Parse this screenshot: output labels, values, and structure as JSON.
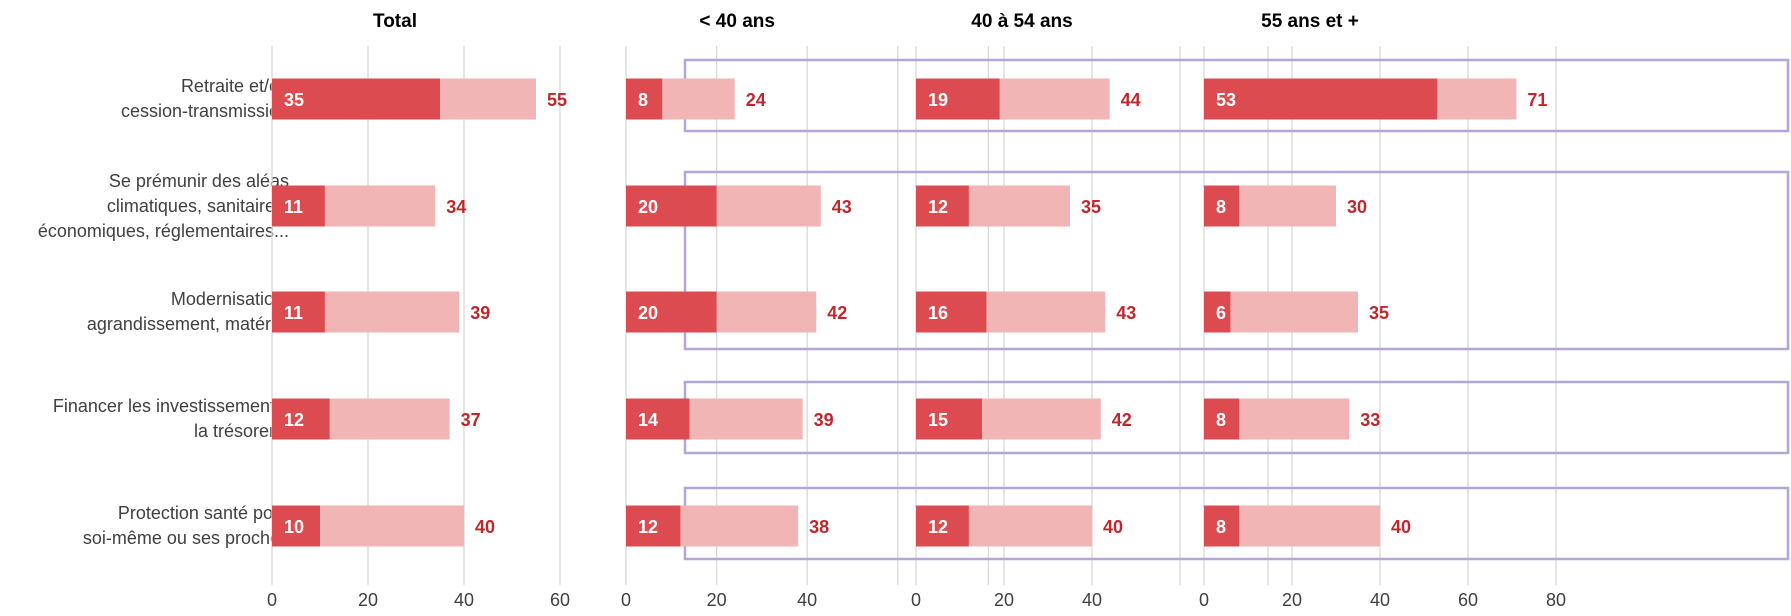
{
  "chart_data": {
    "type": "bar",
    "categories": [
      [
        "Retraite et/ou",
        "cession-transmission"
      ],
      [
        "Se prémunir des aléas",
        "climatiques, sanitaires,",
        "économiques, réglementaires..."
      ],
      [
        "Modernisation,",
        "agrandissement, matériel"
      ],
      [
        "Financer les investissements,",
        "la trésorerie"
      ],
      [
        "Protection santé pour",
        "soi-même ou ses proches"
      ]
    ],
    "panels": [
      {
        "title": "Total",
        "xlim": [
          0,
          60
        ],
        "ticks": [
          0,
          20,
          40,
          60
        ],
        "series": [
          {
            "values": [
              35,
              11,
              11,
              12,
              10
            ]
          },
          {
            "values": [
              55,
              34,
              39,
              37,
              40
            ]
          }
        ]
      },
      {
        "title": "< 40 ans",
        "xlim": [
          0,
          80
        ],
        "ticks": [
          0,
          20,
          40
        ],
        "series": [
          {
            "values": [
              8,
              20,
              20,
              14,
              12
            ]
          },
          {
            "values": [
              24,
              43,
              42,
              39,
              38
            ]
          }
        ]
      },
      {
        "title": "40 à 54 ans",
        "xlim": [
          0,
          80
        ],
        "ticks": [
          0,
          20,
          40
        ],
        "series": [
          {
            "values": [
              19,
              12,
              16,
              15,
              12
            ]
          },
          {
            "values": [
              44,
              35,
              43,
              42,
              40
            ]
          }
        ]
      },
      {
        "title": "55 ans et +",
        "xlim": [
          0,
          80
        ],
        "ticks": [
          0,
          20,
          40,
          60,
          80
        ],
        "series": [
          {
            "values": [
              53,
              8,
              6,
              8,
              8
            ]
          },
          {
            "values": [
              71,
              30,
              35,
              33,
              40
            ]
          }
        ]
      }
    ],
    "colors": {
      "dark": "#dc4b4f",
      "light": "#f1b5b5",
      "label": "#c0272d",
      "grid": "#d9d9d9",
      "box": "#b4a7d6",
      "text": "#404040"
    },
    "grid": true
  }
}
